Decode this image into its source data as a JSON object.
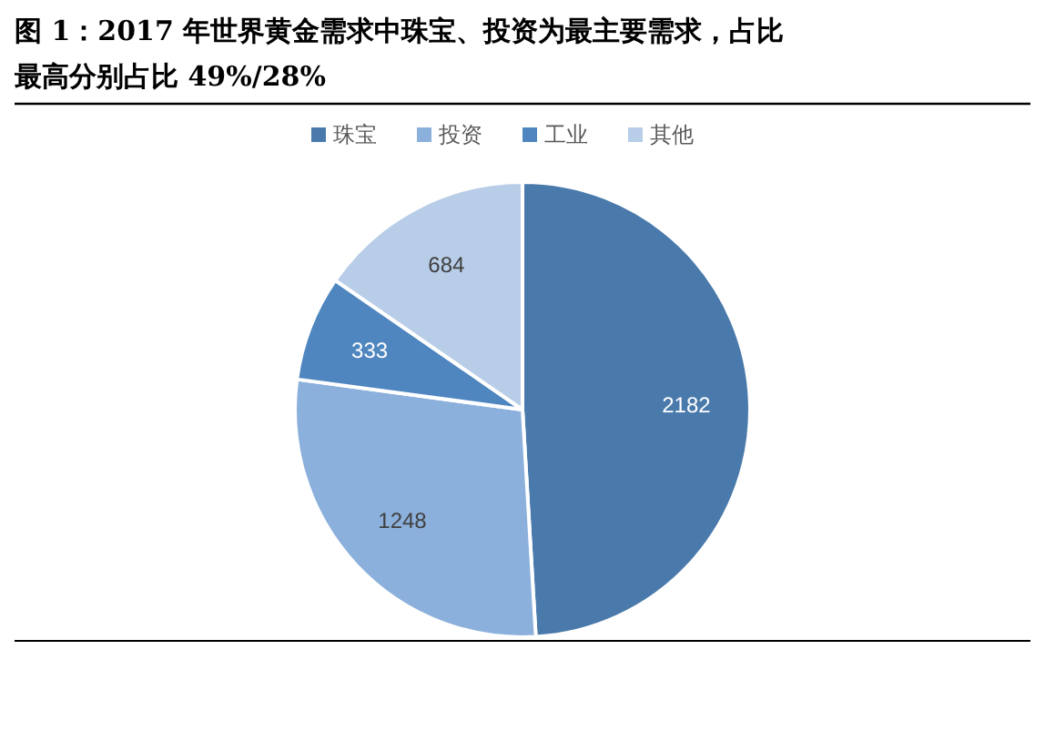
{
  "chart_data": {
    "type": "pie",
    "title": "图 1：2017 年世界黄金需求中珠宝、投资为最主要需求，占比最高分别占比 49%/28%",
    "categories": [
      "珠宝",
      "投资",
      "工业",
      "其他"
    ],
    "values": [
      2182,
      1248,
      333,
      684
    ],
    "colors": [
      "#4a7aab",
      "#8cb0dc",
      "#4f86c0",
      "#b8cde8"
    ],
    "data_labels": true,
    "legend": "top"
  }
}
